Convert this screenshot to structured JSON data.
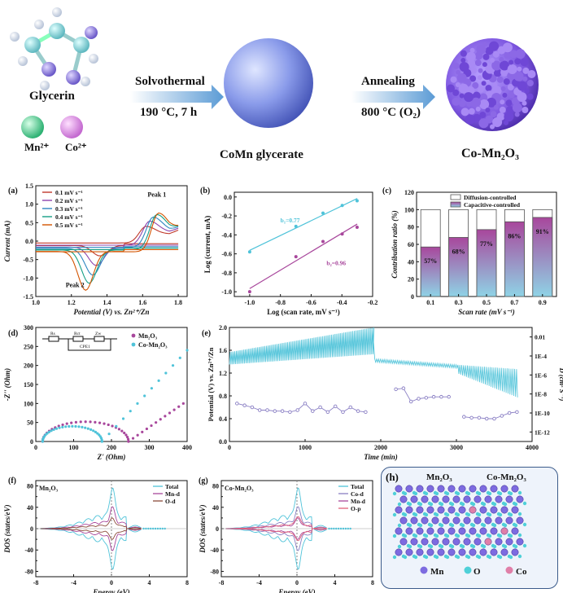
{
  "synthesis": {
    "glycerin_label": "Glycerin",
    "mn_label": "Mn²⁺",
    "co_label": "Co²⁺",
    "step1_top": "Solvothermal",
    "step1_bottom": "190 °C, 7 h",
    "product1": "CoMn glycerate",
    "step2_top": "Annealing",
    "step2_bottom": "800 °C (O₂)",
    "product2": "Co-Mn₂O₃"
  },
  "colors": {
    "arrow": "#5b9bd5",
    "sphere": "#8a9bea",
    "rough_sphere": "#8c68e6",
    "cyan": "#4fc3d9",
    "purple": "#a8479c",
    "dark_purple": "#6a2a7a"
  },
  "chart_data": [
    {
      "panel": "(a)",
      "type": "line",
      "xlabel": "Potential (V) vs. Zn²⁺/Zn",
      "ylabel": "Current (mA)",
      "xlim": [
        1.0,
        1.85
      ],
      "ylim": [
        -1.5,
        1.5
      ],
      "xticks": [
        "1.0",
        "1.2",
        "1.4",
        "1.6",
        "1.8"
      ],
      "yticks": [
        "-1.5",
        "-1.0",
        "-0.5",
        "0.0",
        "0.5",
        "1.0",
        "1.5"
      ],
      "annotations": [
        "Peak 1",
        "Peak 2"
      ],
      "series": [
        {
          "name": "0.1 mV s⁻¹",
          "color": "#c0392b",
          "anodic_peak": [
            1.62,
            0.45
          ],
          "cathodic_peak": [
            1.36,
            -0.28
          ]
        },
        {
          "name": "0.2 mV s⁻¹",
          "color": "#8e44ad",
          "anodic_peak": [
            1.64,
            0.65
          ],
          "cathodic_peak": [
            1.34,
            -0.5
          ]
        },
        {
          "name": "0.3 mV s⁻¹",
          "color": "#2e86c1",
          "anodic_peak": [
            1.66,
            0.82
          ],
          "cathodic_peak": [
            1.32,
            -0.72
          ]
        },
        {
          "name": "0.4 mV s⁻¹",
          "color": "#16a085",
          "anodic_peak": [
            1.68,
            0.95
          ],
          "cathodic_peak": [
            1.3,
            -0.9
          ]
        },
        {
          "name": "0.5 mV s⁻¹",
          "color": "#d35400",
          "anodic_peak": [
            1.69,
            1.05
          ],
          "cathodic_peak": [
            1.28,
            -1.05
          ]
        }
      ]
    },
    {
      "panel": "(b)",
      "type": "scatter",
      "xlabel": "Log (scan rate, mV s⁻¹)",
      "ylabel": "Log (current, mA)",
      "xlim": [
        -1.1,
        -0.2
      ],
      "ylim": [
        -1.05,
        0.05
      ],
      "xticks": [
        "-1.0",
        "-0.8",
        "-0.6",
        "-0.4",
        "-0.2"
      ],
      "yticks": [
        "-1.0",
        "-0.8",
        "-0.6",
        "-0.4",
        "-0.2",
        "0.0"
      ],
      "series": [
        {
          "name": "b₁=0.77",
          "color": "#4fc3d9",
          "x": [
            -1.0,
            -0.699,
            -0.523,
            -0.398,
            -0.301
          ],
          "y": [
            -0.58,
            -0.31,
            -0.17,
            -0.09,
            -0.04
          ]
        },
        {
          "name": "b₂=0.96",
          "color": "#a8479c",
          "x": [
            -1.0,
            -0.699,
            -0.523,
            -0.398,
            -0.301
          ],
          "y": [
            -1.0,
            -0.63,
            -0.47,
            -0.39,
            -0.32
          ]
        }
      ]
    },
    {
      "panel": "(c)",
      "type": "bar",
      "xlabel": "Scan rate (mV s⁻¹)",
      "ylabel": "Contribution ratio (%)",
      "ylim": [
        0,
        120
      ],
      "yticks": [
        "0",
        "20",
        "40",
        "60",
        "80",
        "100",
        "120"
      ],
      "categories": [
        "0.1",
        "0.3",
        "0.5",
        "0.7",
        "0.9"
      ],
      "legend": [
        "Diffusion-controlled",
        "Capacitive-controlled"
      ],
      "values": [
        57,
        68,
        77,
        86,
        91
      ],
      "labels": [
        "57%",
        "68%",
        "77%",
        "86%",
        "91%"
      ]
    },
    {
      "panel": "(d)",
      "type": "scatter",
      "xlabel": "Z' (Ohm)",
      "ylabel": "-Z'' (Ohm)",
      "xlim": [
        0,
        400
      ],
      "ylim": [
        0,
        300
      ],
      "xticks": [
        "0",
        "100",
        "200",
        "300",
        "400"
      ],
      "yticks": [
        "0",
        "50",
        "100",
        "150",
        "200",
        "250",
        "300"
      ],
      "circuit_labels": [
        "Rs",
        "Rct",
        "Zw",
        "CPE1"
      ],
      "series": [
        {
          "name": "Mn₂O₃",
          "color": "#a8479c",
          "semicircle": [
            18,
            245,
            52
          ],
          "tail_end": [
            390,
            100
          ]
        },
        {
          "name": "Co-Mn₂O₃",
          "color": "#4fc3d9",
          "semicircle": [
            18,
            175,
            40
          ],
          "tail_end": [
            400,
            240
          ]
        }
      ]
    },
    {
      "panel": "(e)",
      "type": "line",
      "xlabel": "Time (min)",
      "ylabel": "Potential (V) vs. Zn²⁺/Zn",
      "y2label": "D (cm² S⁻¹)",
      "xlim": [
        0,
        4000
      ],
      "ylim": [
        0.0,
        2.0
      ],
      "xticks": [
        "0",
        "1000",
        "2000",
        "3000",
        "4000"
      ],
      "yticks": [
        "0.0",
        "0.4",
        "0.8",
        "1.2",
        "1.6",
        "2.0"
      ],
      "y2ticks": [
        "0.01",
        "1E-4",
        "1E-6",
        "1E-8",
        "1E-10",
        "1E-12"
      ],
      "series": [
        {
          "name": "Potential",
          "color": "#4fc3d9"
        },
        {
          "name": "D",
          "color": "#8a7fc4",
          "x": [
            100,
            200,
            300,
            400,
            500,
            600,
            700,
            800,
            900,
            1000,
            1100,
            1200,
            1300,
            1400,
            1500,
            1600,
            1700,
            1800,
            2200,
            2300,
            2400,
            2500,
            2600,
            2700,
            2800,
            2900,
            3100,
            3200,
            3300,
            3400,
            3500,
            3600,
            3700,
            3800
          ],
          "logD": [
            -9.0,
            -9.2,
            -9.4,
            -9.7,
            -9.7,
            -9.8,
            -9.8,
            -9.9,
            -9.7,
            -9.0,
            -9.8,
            -9.4,
            -9.9,
            -9.3,
            -9.9,
            -9.4,
            -9.8,
            -9.9,
            -7.5,
            -7.4,
            -8.8,
            -8.5,
            -8.4,
            -8.3,
            -8.3,
            -8.3,
            -10.4,
            -10.5,
            -10.5,
            -10.6,
            -10.6,
            -10.3,
            -10.0,
            -9.9
          ]
        }
      ]
    },
    {
      "panel": "(f)",
      "type": "line",
      "title": "Mn₂O₃",
      "xlabel": "Energy (eV)",
      "ylabel": "DOS (states/eV)",
      "xlim": [
        -8,
        8
      ],
      "ylim": [
        -90,
        90
      ],
      "xticks": [
        "-8",
        "-4",
        "0",
        "4",
        "8"
      ],
      "yticks": [
        "-80",
        "-40",
        "0",
        "40",
        "80"
      ],
      "yticks_minor": [
        "-60",
        "-20",
        "20",
        "60"
      ],
      "series": [
        {
          "name": "Total",
          "color": "#4fc3d9"
        },
        {
          "name": "Mn-d",
          "color": "#a8479c"
        },
        {
          "name": "O-d",
          "color": "#8b4a3a"
        }
      ]
    },
    {
      "panel": "(g)",
      "type": "line",
      "title": "Co-Mn₂O₃",
      "xlabel": "Energy (eV)",
      "ylabel": "DOS (states/eV)",
      "xlim": [
        -8,
        8
      ],
      "ylim": [
        -90,
        90
      ],
      "xticks": [
        "-8",
        "-4",
        "0",
        "4",
        "8"
      ],
      "yticks": [
        "-80",
        "-40",
        "0",
        "40",
        "80"
      ],
      "yticks_minor": [
        "-60",
        "-20",
        "20",
        "60"
      ],
      "series": [
        {
          "name": "Total",
          "color": "#4fc3d9"
        },
        {
          "name": "Co-d",
          "color": "#8a7fc4"
        },
        {
          "name": "Mn-d",
          "color": "#a8479c"
        },
        {
          "name": "O-p",
          "color": "#e0607a"
        }
      ]
    }
  ],
  "panel_h": {
    "label": "(h)",
    "left_title": "Mn₂O₃",
    "right_title": "Co-Mn₂O₃",
    "legend": [
      "Mn",
      "O",
      "Co"
    ]
  }
}
